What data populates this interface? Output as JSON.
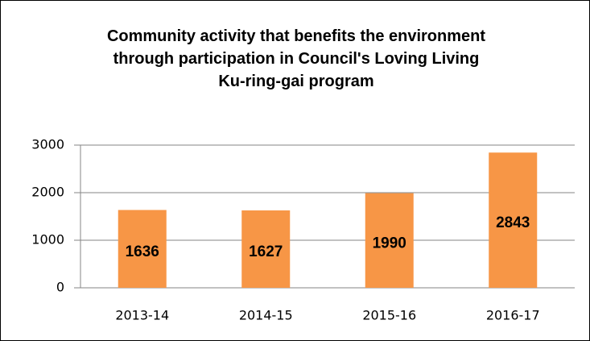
{
  "chart_data": {
    "type": "bar",
    "title": "Community activity that benefits the environment through participation in Council's Loving Living Ku-ring-gai program",
    "categories": [
      "2013-14",
      "2014-15",
      "2015-16",
      "2016-17"
    ],
    "values": [
      1636,
      1627,
      1990,
      2843
    ],
    "color": "#f79646",
    "ylim": [
      0,
      3000
    ],
    "yticks": [
      0,
      1000,
      2000,
      3000
    ],
    "grid": true
  }
}
